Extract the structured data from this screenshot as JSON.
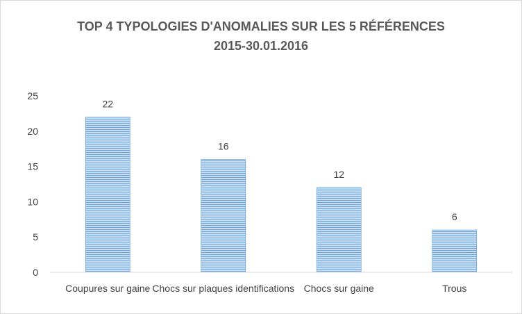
{
  "chart_data": {
    "type": "bar",
    "title_lines": [
      "TOP 4 TYPOLOGIES D'ANOMALIES SUR LES 5 RÉFÉRENCES",
      "2015-30.01.2016"
    ],
    "categories": [
      "Coupures sur gaine",
      "Chocs sur plaques identifications",
      "Chocs  sur gaine",
      "Trous"
    ],
    "values": [
      22,
      16,
      12,
      6
    ],
    "data_labels": [
      "22",
      "16",
      "12",
      "6"
    ],
    "y_ticks": [
      "0",
      "5",
      "10",
      "15",
      "20",
      "25"
    ],
    "ylim": [
      0,
      25
    ],
    "xlabel": "",
    "ylabel": "",
    "grid": false,
    "legend": "none",
    "bar_color": "#9dc3e6",
    "bar_stripe_color": "#5b9bd5"
  }
}
